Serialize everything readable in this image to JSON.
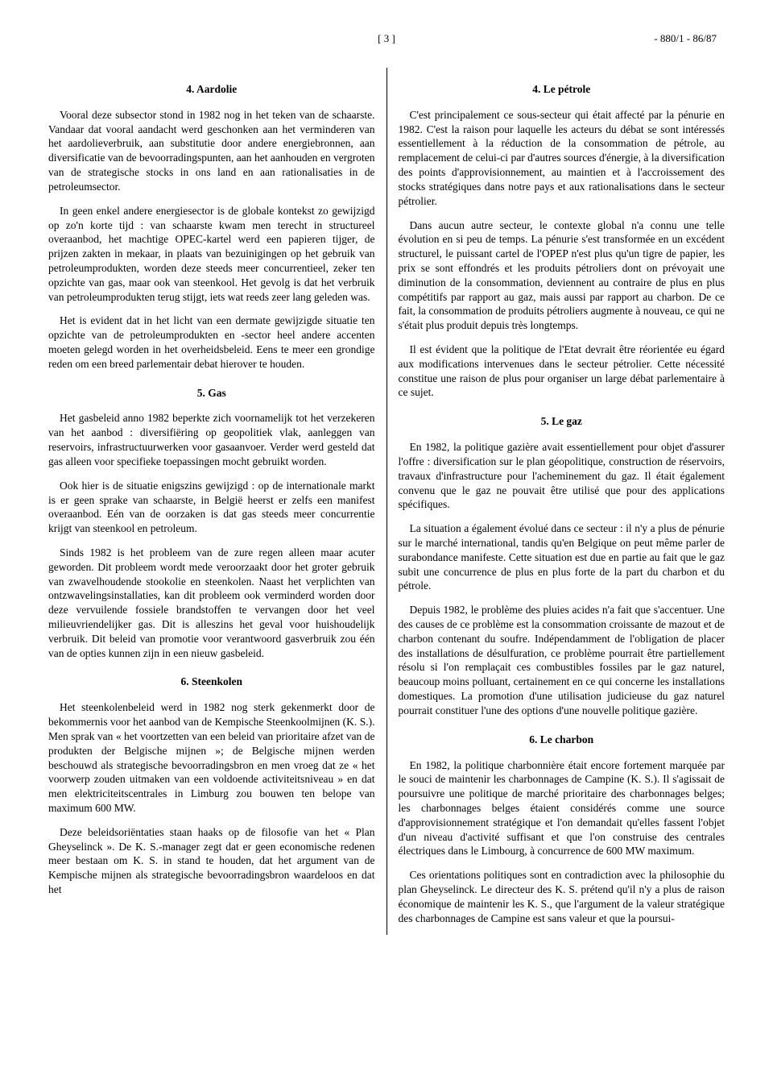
{
  "header": {
    "center": "[ 3 ]",
    "right": "- 880/1 - 86/87"
  },
  "left": {
    "s4_title": "4. Aardolie",
    "s4_p1": "Vooral deze subsector stond in 1982 nog in het teken van de schaarste. Vandaar dat vooral aandacht werd geschonken aan het verminderen van het aardolieverbruik, aan substitutie door andere energiebronnen, aan diversificatie van de bevoorradingspunten, aan het aanhouden en vergroten van de strategische stocks in ons land en aan rationalisaties in de petroleumsector.",
    "s4_p2": "In geen enkel andere energiesector is de globale kontekst zo gewijzigd op zo'n korte tijd : van schaarste kwam men terecht in structureel overaanbod, het machtige OPEC-kartel werd een papieren tijger, de prijzen zakten in mekaar, in plaats van bezuinigingen op het gebruik van petroleumprodukten, worden deze steeds meer concurrentieel, zeker ten opzichte van gas, maar ook van steenkool. Het gevolg is dat het verbruik van petroleumprodukten terug stijgt, iets wat reeds zeer lang geleden was.",
    "s4_p3": "Het is evident dat in het licht van een dermate gewijzigde situatie ten opzichte van de petroleumprodukten en -sector heel andere accenten moeten gelegd worden in het overheidsbeleid. Eens te meer een grondige reden om een breed parlementair debat hierover te houden.",
    "s5_title": "5. Gas",
    "s5_p1": "Het gasbeleid anno 1982 beperkte zich voornamelijk tot het verzekeren van het aanbod : diversifiëring op geopolitiek vlak, aanleggen van reservoirs, infrastructuurwerken voor gasaanvoer. Verder werd gesteld dat gas alleen voor specifieke toepassingen mocht gebruikt worden.",
    "s5_p2": "Ook hier is de situatie enigszins gewijzigd : op de internationale markt is er geen sprake van schaarste, in België heerst er zelfs een manifest overaanbod. Eén van de oorzaken is dat gas steeds meer concurrentie krijgt van steenkool en petroleum.",
    "s5_p3": "Sinds 1982 is het probleem van de zure regen alleen maar acuter geworden. Dit probleem wordt mede veroorzaakt door het groter gebruik van zwavelhoudende stookolie en steenkolen. Naast het verplichten van ontzwavelingsinstallaties, kan dit probleem ook verminderd worden door deze vervuilende fossiele brandstoffen te vervangen door het veel milieuvriendelijker gas. Dit is alleszins het geval voor huishoudelijk verbruik. Dit beleid van promotie voor verantwoord gasverbruik zou één van de opties kunnen zijn in een nieuw gasbeleid.",
    "s6_title": "6. Steenkolen",
    "s6_p1": "Het steenkolenbeleid werd in 1982 nog sterk gekenmerkt door de bekommernis voor het aanbod van de Kempische Steenkoolmijnen (K. S.). Men sprak van « het voortzetten van een beleid van prioritaire afzet van de produkten der Belgische mijnen »; de Belgische mijnen werden beschouwd als strategische bevoorradingsbron en men vroeg dat ze « het voorwerp zouden uitmaken van een voldoende activiteitsniveau » en dat men elektriciteitscentrales in Limburg zou bouwen ten belope van maximum 600 MW.",
    "s6_p2": "Deze beleidsoriëntaties staan haaks op de filosofie van het « Plan Gheyselinck ». De K. S.-manager zegt dat er geen economische redenen meer bestaan om K. S. in stand te houden, dat het argument van de Kempische mijnen als strategische bevoorradingsbron waardeloos en dat het"
  },
  "right": {
    "s4_title": "4. Le pétrole",
    "s4_p1": "C'est principalement ce sous-secteur qui était affecté par la pénurie en 1982. C'est la raison pour laquelle les acteurs du débat se sont intéressés essentiellement à la réduction de la consommation de pétrole, au remplacement de celui-ci par d'autres sources d'énergie, à la diversification des points d'approvisionnement, au maintien et à l'accroissement des stocks stratégiques dans notre pays et aux rationalisations dans le secteur pétrolier.",
    "s4_p2": "Dans aucun autre secteur, le contexte global n'a connu une telle évolution en si peu de temps. La pénurie s'est transformée en un excédent structurel, le puissant cartel de l'OPEP n'est plus qu'un tigre de papier, les prix se sont effondrés et les produits pétroliers dont on prévoyait une diminution de la consommation, deviennent au contraire de plus en plus compétitifs par rapport au gaz, mais aussi par rapport au charbon. De ce fait, la consommation de produits pétroliers augmente à nouveau, ce qui ne s'était plus produit depuis très longtemps.",
    "s4_p3": "Il est évident que la politique de l'Etat devrait être réorientée eu égard aux modifications intervenues dans le secteur pétrolier. Cette nécessité constitue une raison de plus pour organiser un large débat parlementaire à ce sujet.",
    "s5_title": "5. Le gaz",
    "s5_p1": "En 1982, la politique gazière avait essentiellement pour objet d'assurer l'offre : diversification sur le plan géopolitique, construction de réservoirs, travaux d'infrastructure pour l'acheminement du gaz. Il était également convenu que le gaz ne pouvait être utilisé que pour des applications spécifiques.",
    "s5_p2": "La situation a également évolué dans ce secteur : il n'y a plus de pénurie sur le marché international, tandis qu'en Belgique on peut même parler de surabondance manifeste. Cette situation est due en partie au fait que le gaz subit une concurrence de plus en plus forte de la part du charbon et du pétrole.",
    "s5_p3": "Depuis 1982, le problème des pluies acides n'a fait que s'accentuer. Une des causes de ce problème est la consommation croissante de mazout et de charbon contenant du soufre. Indépendamment de l'obligation de placer des installations de désulfuration, ce problème pourrait être partiellement résolu si l'on remplaçait ces combustibles fossiles par le gaz naturel, beaucoup moins polluant, certainement en ce qui concerne les installations domestiques. La promotion d'une utilisation judicieuse du gaz naturel pourrait constituer l'une des options d'une nouvelle politique gazière.",
    "s6_title": "6. Le charbon",
    "s6_p1": "En 1982, la politique charbonnière était encore fortement marquée par le souci de maintenir les charbonnages de Campine (K. S.). Il s'agissait de poursuivre une politique de marché prioritaire des charbonnages belges; les charbonnages belges étaient considérés comme une source d'approvisionnement stratégique et l'on demandait qu'elles fassent l'objet d'un niveau d'activité suffisant et que l'on construise des centrales électriques dans le Limbourg, à concurrence de 600 MW maximum.",
    "s6_p2": "Ces orientations politiques sont en contradiction avec la philosophie du plan Gheyselinck. Le directeur des K. S. prétend qu'il n'y a plus de raison économique de maintenir les K. S., que l'argument de la valeur stratégique des charbonnages de Campine est sans valeur et que la poursui-"
  }
}
